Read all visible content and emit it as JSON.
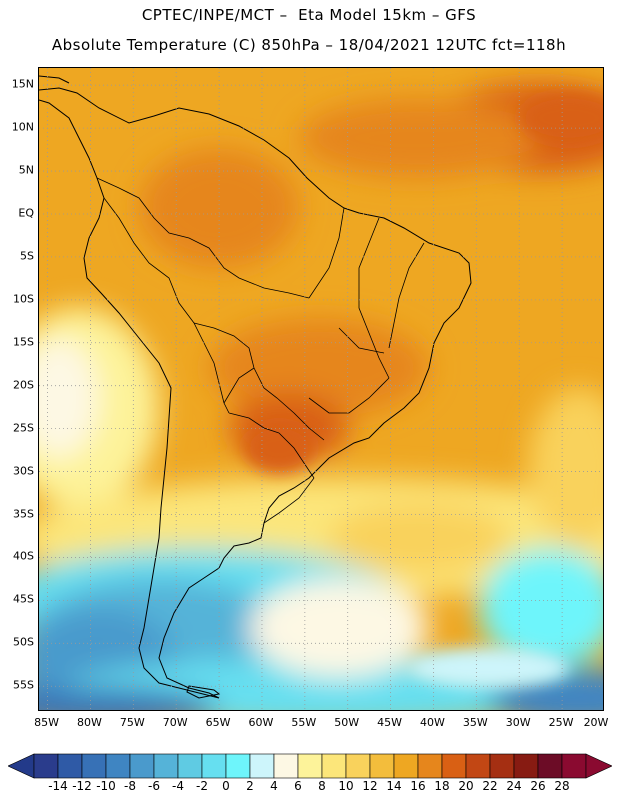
{
  "header": {
    "line1": "CPTEC/INPE/MCT –  Eta Model 15km – GFS",
    "line2": "Absolute Temperature (C) 850hPa – 18/04/2021 12UTC fct=118h"
  },
  "map": {
    "lon_range": [
      -86,
      -20
    ],
    "lat_range": [
      -58,
      17
    ],
    "lat_labels": [
      "15N",
      "10N",
      "5N",
      "EQ",
      "5S",
      "10S",
      "15S",
      "20S",
      "25S",
      "30S",
      "35S",
      "40S",
      "45S",
      "50S",
      "55S"
    ],
    "lat_values": [
      15,
      10,
      5,
      0,
      -5,
      -10,
      -15,
      -20,
      -25,
      -30,
      -35,
      -40,
      -45,
      -50,
      -55
    ],
    "lon_labels": [
      "85W",
      "80W",
      "75W",
      "70W",
      "65W",
      "60W",
      "55W",
      "50W",
      "45W",
      "40W",
      "35W",
      "30W",
      "25W",
      "20W"
    ],
    "lon_values": [
      -85,
      -80,
      -75,
      -70,
      -65,
      -60,
      -55,
      -50,
      -45,
      -40,
      -35,
      -30,
      -25,
      -20
    ],
    "gridlines": true
  },
  "colorbar": {
    "labels": [
      "-14",
      "-12",
      "-10",
      "-8",
      "-6",
      "-4",
      "-2",
      "0",
      "2",
      "4",
      "6",
      "8",
      "10",
      "12",
      "14",
      "16",
      "18",
      "20",
      "22",
      "24",
      "26",
      "28"
    ],
    "colors": [
      "#2a3c8c",
      "#2f5aa6",
      "#3771b6",
      "#3f85c2",
      "#4a9acc",
      "#55b3d8",
      "#5fcbe3",
      "#66dff0",
      "#6ef5fb",
      "#cdf5fb",
      "#fdf8e4",
      "#fdf39a",
      "#fce67a",
      "#f9d25c",
      "#f3bd3c",
      "#eea722",
      "#e6861c",
      "#d96014",
      "#c24714",
      "#a52f12",
      "#871b12",
      "#6c0c26",
      "#8a0a30"
    ],
    "under_color": "#233a8a",
    "over_color": "#8a0a30"
  }
}
